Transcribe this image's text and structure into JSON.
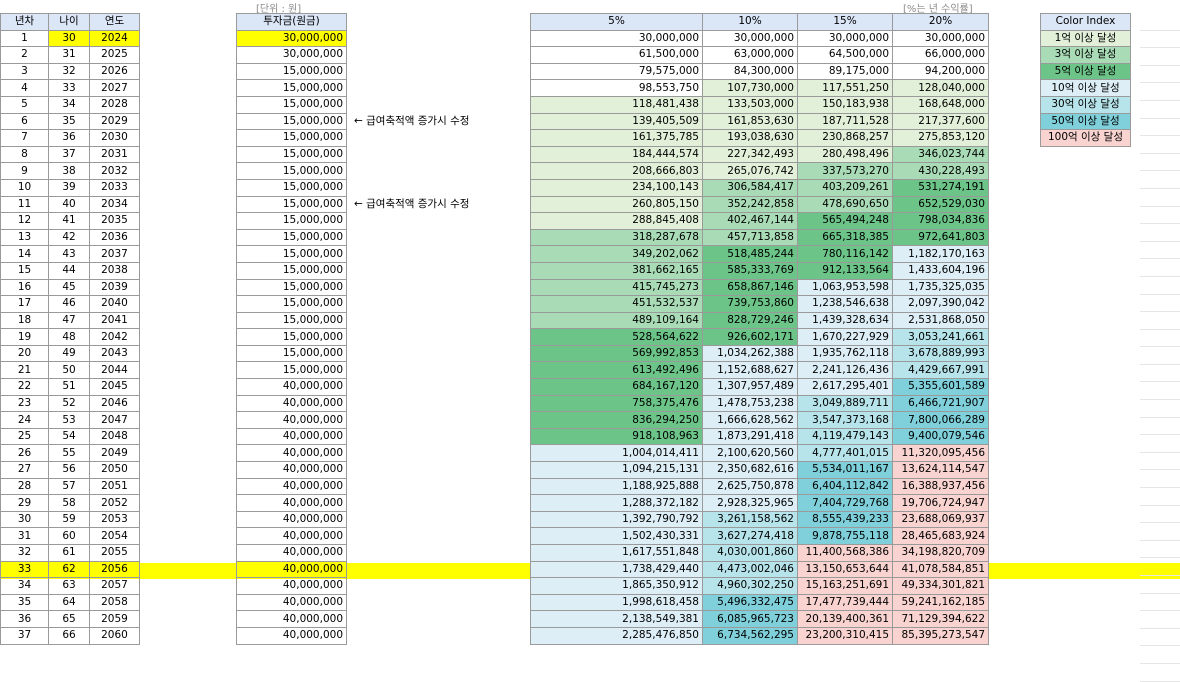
{
  "unit_label": "[단위 : 원]",
  "rate_note": "[%는 년 수익률]",
  "headers": {
    "year_no": "년차",
    "age": "나이",
    "year": "연도",
    "invest": "투자금(원금)",
    "r5": "5%",
    "r10": "10%",
    "r15": "15%",
    "r20": "20%"
  },
  "legend": {
    "title": "Color Index",
    "items": [
      {
        "label": "1억 이상 달성",
        "color": "#e2f0d9"
      },
      {
        "label": "3억 이상 달성",
        "color": "#a9dcb6"
      },
      {
        "label": "5억 이상 달성",
        "color": "#6cc488"
      },
      {
        "label": "10억 이상 달성",
        "color": "#ddeef6"
      },
      {
        "label": "30억 이상 달성",
        "color": "#b7e3ea"
      },
      {
        "label": "50억 이상 달성",
        "color": "#7fd0da"
      },
      {
        "label": "100억 이상 달성",
        "color": "#f8d3d0"
      }
    ]
  },
  "notes": [
    {
      "row": 6,
      "text": "← 급여축적액 증가시 수정"
    },
    {
      "row": 11,
      "text": "← 급여축적액 증가시 수정"
    }
  ],
  "highlight_row": 33,
  "rows": [
    [
      "1",
      "30",
      "2024",
      "30,000,000",
      "30,000,000",
      "30,000,000",
      "30,000,000",
      "30,000,000"
    ],
    [
      "2",
      "31",
      "2025",
      "30,000,000",
      "61,500,000",
      "63,000,000",
      "64,500,000",
      "66,000,000"
    ],
    [
      "3",
      "32",
      "2026",
      "15,000,000",
      "79,575,000",
      "84,300,000",
      "89,175,000",
      "94,200,000"
    ],
    [
      "4",
      "33",
      "2027",
      "15,000,000",
      "98,553,750",
      "107,730,000",
      "117,551,250",
      "128,040,000"
    ],
    [
      "5",
      "34",
      "2028",
      "15,000,000",
      "118,481,438",
      "133,503,000",
      "150,183,938",
      "168,648,000"
    ],
    [
      "6",
      "35",
      "2029",
      "15,000,000",
      "139,405,509",
      "161,853,630",
      "187,711,528",
      "217,377,600"
    ],
    [
      "7",
      "36",
      "2030",
      "15,000,000",
      "161,375,785",
      "193,038,630",
      "230,868,257",
      "275,853,120"
    ],
    [
      "8",
      "37",
      "2031",
      "15,000,000",
      "184,444,574",
      "227,342,493",
      "280,498,496",
      "346,023,744"
    ],
    [
      "9",
      "38",
      "2032",
      "15,000,000",
      "208,666,803",
      "265,076,742",
      "337,573,270",
      "430,228,493"
    ],
    [
      "10",
      "39",
      "2033",
      "15,000,000",
      "234,100,143",
      "306,584,417",
      "403,209,261",
      "531,274,191"
    ],
    [
      "11",
      "40",
      "2034",
      "15,000,000",
      "260,805,150",
      "352,242,858",
      "478,690,650",
      "652,529,030"
    ],
    [
      "12",
      "41",
      "2035",
      "15,000,000",
      "288,845,408",
      "402,467,144",
      "565,494,248",
      "798,034,836"
    ],
    [
      "13",
      "42",
      "2036",
      "15,000,000",
      "318,287,678",
      "457,713,858",
      "665,318,385",
      "972,641,803"
    ],
    [
      "14",
      "43",
      "2037",
      "15,000,000",
      "349,202,062",
      "518,485,244",
      "780,116,142",
      "1,182,170,163"
    ],
    [
      "15",
      "44",
      "2038",
      "15,000,000",
      "381,662,165",
      "585,333,769",
      "912,133,564",
      "1,433,604,196"
    ],
    [
      "16",
      "45",
      "2039",
      "15,000,000",
      "415,745,273",
      "658,867,146",
      "1,063,953,598",
      "1,735,325,035"
    ],
    [
      "17",
      "46",
      "2040",
      "15,000,000",
      "451,532,537",
      "739,753,860",
      "1,238,546,638",
      "2,097,390,042"
    ],
    [
      "18",
      "47",
      "2041",
      "15,000,000",
      "489,109,164",
      "828,729,246",
      "1,439,328,634",
      "2,531,868,050"
    ],
    [
      "19",
      "48",
      "2042",
      "15,000,000",
      "528,564,622",
      "926,602,171",
      "1,670,227,929",
      "3,053,241,661"
    ],
    [
      "20",
      "49",
      "2043",
      "15,000,000",
      "569,992,853",
      "1,034,262,388",
      "1,935,762,118",
      "3,678,889,993"
    ],
    [
      "21",
      "50",
      "2044",
      "15,000,000",
      "613,492,496",
      "1,152,688,627",
      "2,241,126,436",
      "4,429,667,991"
    ],
    [
      "22",
      "51",
      "2045",
      "40,000,000",
      "684,167,120",
      "1,307,957,489",
      "2,617,295,401",
      "5,355,601,589"
    ],
    [
      "23",
      "52",
      "2046",
      "40,000,000",
      "758,375,476",
      "1,478,753,238",
      "3,049,889,711",
      "6,466,721,907"
    ],
    [
      "24",
      "53",
      "2047",
      "40,000,000",
      "836,294,250",
      "1,666,628,562",
      "3,547,373,168",
      "7,800,066,289"
    ],
    [
      "25",
      "54",
      "2048",
      "40,000,000",
      "918,108,963",
      "1,873,291,418",
      "4,119,479,143",
      "9,400,079,546"
    ],
    [
      "26",
      "55",
      "2049",
      "40,000,000",
      "1,004,014,411",
      "2,100,620,560",
      "4,777,401,015",
      "11,320,095,456"
    ],
    [
      "27",
      "56",
      "2050",
      "40,000,000",
      "1,094,215,131",
      "2,350,682,616",
      "5,534,011,167",
      "13,624,114,547"
    ],
    [
      "28",
      "57",
      "2051",
      "40,000,000",
      "1,188,925,888",
      "2,625,750,878",
      "6,404,112,842",
      "16,388,937,456"
    ],
    [
      "29",
      "58",
      "2052",
      "40,000,000",
      "1,288,372,182",
      "2,928,325,965",
      "7,404,729,768",
      "19,706,724,947"
    ],
    [
      "30",
      "59",
      "2053",
      "40,000,000",
      "1,392,790,792",
      "3,261,158,562",
      "8,555,439,233",
      "23,688,069,937"
    ],
    [
      "31",
      "60",
      "2054",
      "40,000,000",
      "1,502,430,331",
      "3,627,274,418",
      "9,878,755,118",
      "28,465,683,924"
    ],
    [
      "32",
      "61",
      "2055",
      "40,000,000",
      "1,617,551,848",
      "4,030,001,860",
      "11,400,568,386",
      "34,198,820,709"
    ],
    [
      "33",
      "62",
      "2056",
      "40,000,000",
      "1,738,429,440",
      "4,473,002,046",
      "13,150,653,644",
      "41,078,584,851"
    ],
    [
      "34",
      "63",
      "2057",
      "40,000,000",
      "1,865,350,912",
      "4,960,302,250",
      "15,163,251,691",
      "49,334,301,821"
    ],
    [
      "35",
      "64",
      "2058",
      "40,000,000",
      "1,998,618,458",
      "5,496,332,475",
      "17,477,739,444",
      "59,241,162,185"
    ],
    [
      "36",
      "65",
      "2059",
      "40,000,000",
      "2,138,549,381",
      "6,085,965,723",
      "20,139,400,361",
      "71,129,394,622"
    ],
    [
      "37",
      "66",
      "2060",
      "40,000,000",
      "2,285,476,850",
      "6,734,562,295",
      "23,200,310,415",
      "85,395,273,547"
    ]
  ]
}
